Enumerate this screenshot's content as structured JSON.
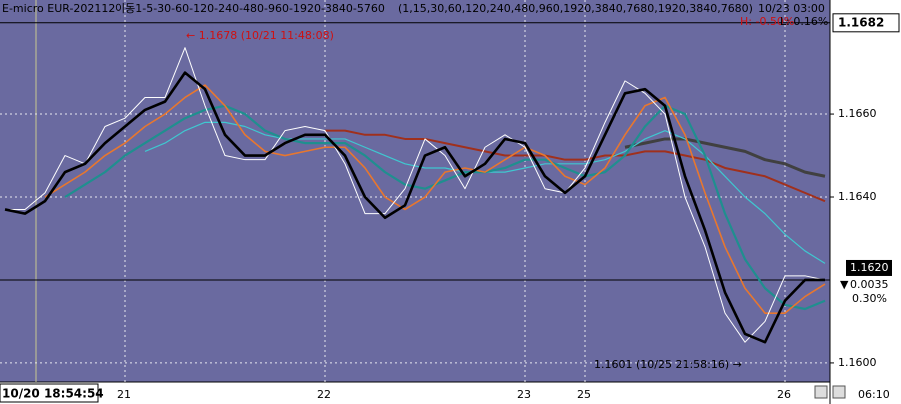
{
  "chart_data": {
    "type": "line",
    "header": {
      "title": "E-micro EUR-202112",
      "indicator": "이동1-5-30-60-120-240-480-960-1920-3840-5760",
      "params": "(1,15,30,60,120,240,480,960,1920,3840,7680,1920,3840,7680)",
      "time": "10/23 03:00",
      "high_change": "H: -0.50%",
      "low_change": "L: 0.16%"
    },
    "annotations": {
      "high": "← 1.1678 (10/21 11:48:08)",
      "low": "1.1601 (10/25 21:58:16) →"
    },
    "markers": {
      "high": {
        "value": 1.1682,
        "label": "1.1682"
      },
      "current": {
        "value": 1.162,
        "label": "1.1620"
      }
    },
    "side_labels": {
      "change": "0.0035",
      "percent": "0.30%"
    },
    "cursor_time": "10/20 18:54:54",
    "time_label": "06:10",
    "categories": [
      null,
      null,
      null,
      null,
      null,
      null,
      "21",
      null,
      null,
      null,
      null,
      null,
      null,
      null,
      null,
      null,
      "22",
      null,
      null,
      null,
      null,
      null,
      null,
      null,
      null,
      null,
      "23",
      null,
      null,
      "25",
      null,
      null,
      null,
      null,
      null,
      null,
      null,
      null,
      null,
      "26",
      null,
      null
    ],
    "series": [
      {
        "color": "#ffffff",
        "values": [
          1.1637,
          1.1637,
          1.1641,
          1.165,
          1.1648,
          1.1657,
          1.1659,
          1.1664,
          1.1664,
          1.1676,
          1.1662,
          1.165,
          1.1649,
          1.1649,
          1.1656,
          1.1657,
          1.1656,
          1.1648,
          1.1636,
          1.1636,
          1.1642,
          1.1654,
          1.165,
          1.1642,
          1.1652,
          1.1655,
          1.1652,
          1.1642,
          1.1641,
          1.1647,
          1.1658,
          1.1668,
          1.1665,
          1.166,
          1.164,
          1.1628,
          1.1612,
          1.1605,
          1.161,
          1.1621,
          1.1621,
          1.162
        ]
      },
      {
        "color": "#000000",
        "values": [
          1.1637,
          1.1636,
          1.1639,
          1.1646,
          1.1648,
          1.1653,
          1.1657,
          1.1661,
          1.1663,
          1.167,
          1.1666,
          1.1655,
          1.165,
          1.165,
          1.1653,
          1.1655,
          1.1655,
          1.165,
          1.164,
          1.1635,
          1.1638,
          1.165,
          1.1652,
          1.1645,
          1.1648,
          1.1654,
          1.1653,
          1.1645,
          1.1641,
          1.1645,
          1.1655,
          1.1665,
          1.1666,
          1.1662,
          1.1645,
          1.1632,
          1.1617,
          1.1607,
          1.1605,
          1.1615,
          1.162,
          1.162
        ]
      },
      {
        "color": "#e8772e",
        "values": [
          null,
          null,
          1.164,
          1.1643,
          1.1646,
          1.165,
          1.1653,
          1.1657,
          1.166,
          1.1664,
          1.1667,
          1.1662,
          1.1655,
          1.1651,
          1.165,
          1.1651,
          1.1652,
          1.1652,
          1.1647,
          1.164,
          1.1637,
          1.164,
          1.1646,
          1.1647,
          1.1646,
          1.1649,
          1.1652,
          1.165,
          1.1645,
          1.1643,
          1.1647,
          1.1655,
          1.1662,
          1.1664,
          1.1655,
          1.1641,
          1.1628,
          1.1618,
          1.1612,
          1.1612,
          1.1616,
          1.1619
        ]
      },
      {
        "color": "#1f8f8f",
        "values": [
          null,
          null,
          null,
          1.164,
          1.1643,
          1.1646,
          1.165,
          1.1653,
          1.1656,
          1.1659,
          1.1661,
          1.1662,
          1.166,
          1.1656,
          1.1654,
          1.1653,
          1.1653,
          1.1653,
          1.165,
          1.1646,
          1.1643,
          1.1642,
          1.1644,
          1.1646,
          1.1646,
          1.1647,
          1.1649,
          1.1649,
          1.1647,
          1.1645,
          1.1646,
          1.165,
          1.1657,
          1.1662,
          1.166,
          1.165,
          1.1636,
          1.1625,
          1.1618,
          1.1614,
          1.1613,
          1.1615
        ]
      },
      {
        "color": "#3fc8d0",
        "values": [
          null,
          null,
          null,
          null,
          null,
          null,
          null,
          1.1651,
          1.1653,
          1.1656,
          1.1658,
          1.1658,
          1.1657,
          1.1655,
          1.1654,
          1.1654,
          1.1654,
          1.1654,
          1.1652,
          1.165,
          1.1648,
          1.1647,
          1.1647,
          1.1646,
          1.1646,
          1.1646,
          1.1647,
          1.1648,
          1.1648,
          1.1648,
          1.1649,
          1.1651,
          1.1654,
          1.1656,
          1.1654,
          1.165,
          1.1645,
          1.164,
          1.1636,
          1.1631,
          1.1627,
          1.1624
        ]
      },
      {
        "color": "#a0301c",
        "values": [
          null,
          null,
          null,
          null,
          null,
          null,
          null,
          null,
          null,
          null,
          null,
          null,
          null,
          null,
          null,
          null,
          1.1656,
          1.1656,
          1.1655,
          1.1655,
          1.1654,
          1.1654,
          1.1653,
          1.1652,
          1.1651,
          1.165,
          1.165,
          1.165,
          1.1649,
          1.1649,
          1.165,
          1.165,
          1.1651,
          1.1651,
          1.165,
          1.1649,
          1.1647,
          1.1646,
          1.1645,
          1.1643,
          1.1641,
          1.1639
        ]
      },
      {
        "color": "#404040",
        "values": [
          null,
          null,
          null,
          null,
          null,
          null,
          null,
          null,
          null,
          null,
          null,
          null,
          null,
          null,
          null,
          null,
          null,
          null,
          null,
          null,
          null,
          null,
          null,
          null,
          null,
          null,
          null,
          null,
          null,
          null,
          null,
          1.1652,
          1.1653,
          1.1654,
          1.1654,
          1.1653,
          1.1652,
          1.1651,
          1.1649,
          1.1648,
          1.1646,
          1.1645
        ]
      }
    ],
    "ylim": [
      1.15954,
      1.16875
    ],
    "yticks": [
      {
        "value": 1.16,
        "label": "1.1600"
      },
      {
        "value": 1.164,
        "label": "1.1640"
      },
      {
        "value": 1.166,
        "label": "1.1660"
      }
    ],
    "grid": true
  }
}
